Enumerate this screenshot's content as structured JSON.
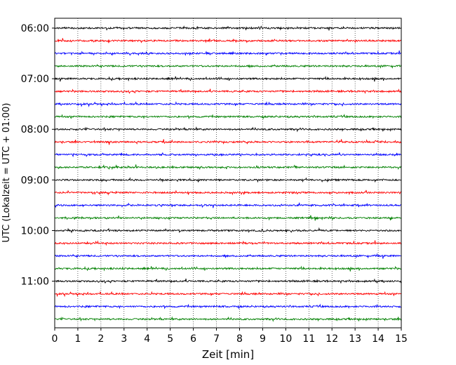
{
  "chart_data": {
    "type": "line",
    "title": "",
    "xlabel": "Zeit  [min]",
    "ylabel": "UTC (Lokalzeit = UTC + 01:00)",
    "xlim": [
      0,
      15
    ],
    "xticks": [
      "0",
      "1",
      "2",
      "3",
      "4",
      "5",
      "6",
      "7",
      "8",
      "9",
      "10",
      "11",
      "12",
      "13",
      "14",
      "15"
    ],
    "yticks": [
      "06:00",
      "07:00",
      "08:00",
      "09:00",
      "10:00",
      "11:00"
    ],
    "grid_x": true,
    "grid_style": "dotted",
    "trace_interval_minutes": 15,
    "start_time": "06:00",
    "end_time": "11:45",
    "trace_color_cycle": [
      "#000000",
      "#ff0000",
      "#0000ff",
      "#008000"
    ],
    "series_description": "Seismogram helicorder: 24 rows of 15-minute traces (06:00–11:45 UTC), colors cycle black/red/blue/green"
  }
}
